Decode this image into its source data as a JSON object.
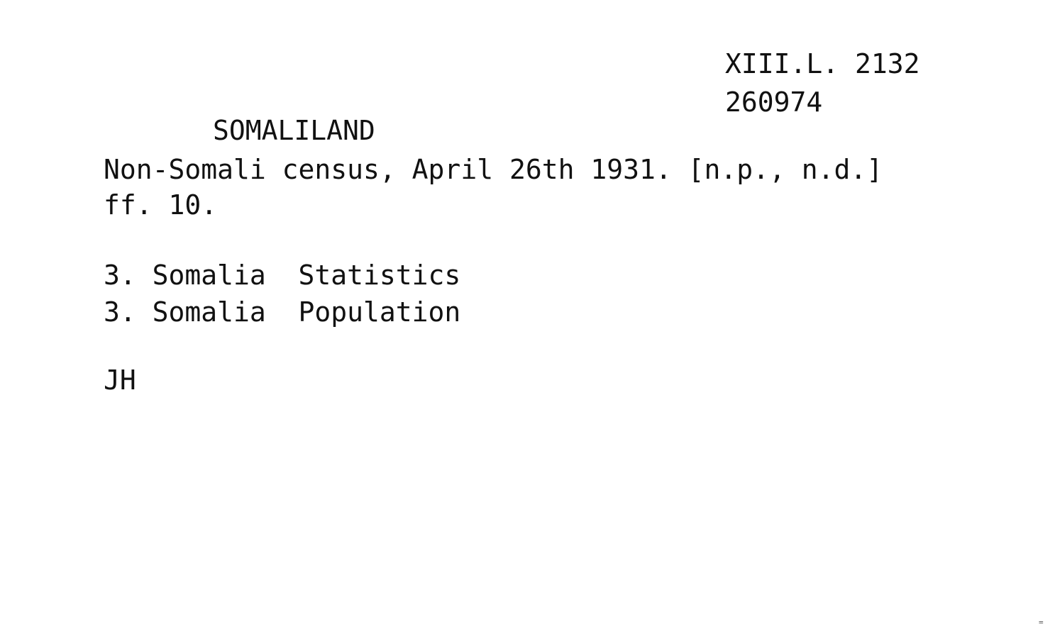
{
  "catalog_card": {
    "shelfmark": "XIII.L. 2132",
    "accession_number": "260974",
    "heading": "SOMALILAND",
    "title_line_1": "Non-Somali census, April 26th 1931. [n.p., n.d.]",
    "title_line_2": "ff. 10.",
    "subject_entries": [
      "3. Somalia  Statistics",
      "3. Somalia  Population"
    ],
    "initials": "JH",
    "corner_mark": "="
  }
}
